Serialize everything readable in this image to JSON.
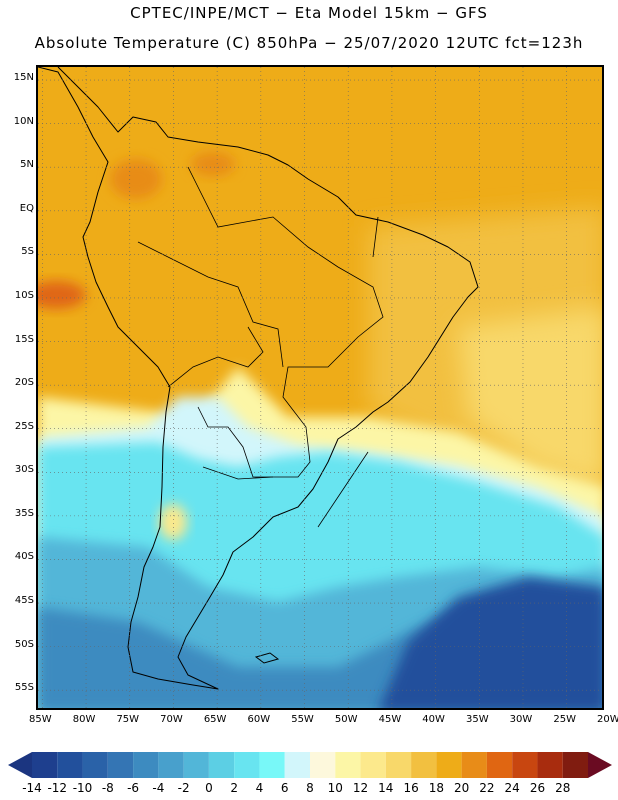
{
  "header": {
    "line1": "CPTEC/INPE/MCT −  Eta Model 15km − GFS",
    "line2": "Absolute Temperature (C) 850hPa − 25/07/2020 12UTC fct=123h"
  },
  "map": {
    "lat_labels": [
      "15N",
      "10N",
      "5N",
      "EQ",
      "5S",
      "10S",
      "15S",
      "20S",
      "25S",
      "30S",
      "35S",
      "40S",
      "45S",
      "50S",
      "55S"
    ],
    "lon_labels": [
      "85W",
      "80W",
      "75W",
      "70W",
      "65W",
      "60W",
      "55W",
      "50W",
      "45W",
      "40W",
      "35W",
      "30W",
      "25W",
      "20W"
    ],
    "lat_range": [
      -57.5,
      16.5
    ],
    "lon_range": [
      -85.5,
      -20.5
    ]
  },
  "colorbar": {
    "labels": [
      "-14",
      "-12",
      "-10",
      "-8",
      "-6",
      "-4",
      "-2",
      "0",
      "2",
      "4",
      "6",
      "8",
      "10",
      "12",
      "14",
      "16",
      "18",
      "20",
      "22",
      "24",
      "26",
      "28"
    ],
    "colors": [
      "#1e3f8e",
      "#22509c",
      "#2a62a8",
      "#3475b4",
      "#3d8bc0",
      "#48a0cc",
      "#52b6d8",
      "#5ccfe4",
      "#68e4f0",
      "#78f8f8",
      "#d2f6fb",
      "#fdf8dc",
      "#fcf6a6",
      "#fce98c",
      "#f8d86a",
      "#f2c040",
      "#eeac18",
      "#e88c18",
      "#e06612",
      "#c84610",
      "#a82c0e",
      "#801c10"
    ],
    "under_color": "#1b3580",
    "over_color": "#6a0b22"
  }
}
